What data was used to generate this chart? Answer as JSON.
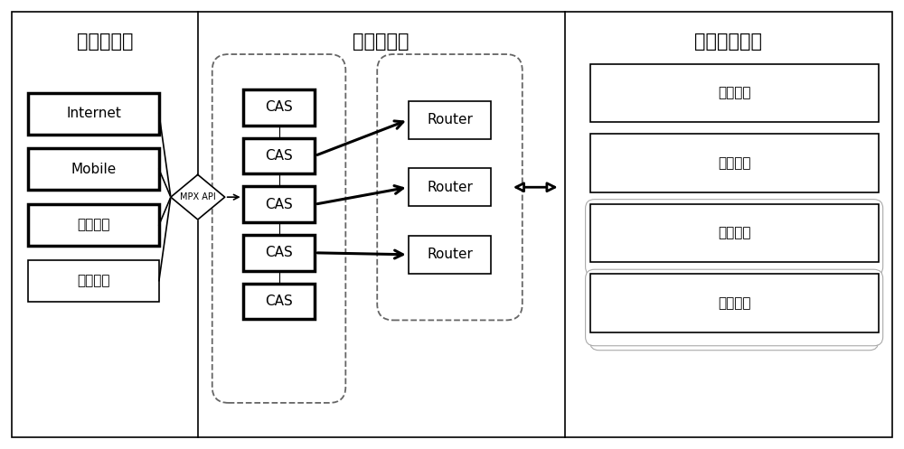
{
  "fig_width": 10.0,
  "fig_height": 4.97,
  "bg_color": "#ffffff",
  "section1_title": "新投注渠道",
  "section2_title": "接入路由层",
  "section3_title": "游戏交易系统",
  "left_boxes": [
    "Internet",
    "Mobile",
    "数字电视",
    "呼叫中心"
  ],
  "cas_labels": [
    "CAS",
    "CAS",
    "CAS",
    "CAS",
    "CAS"
  ],
  "router_labels": [
    "Router",
    "Router",
    "Router"
  ],
  "right_boxes": [
    "乐透系统",
    "高频系统",
    "竞彩系统",
    "即开系统"
  ],
  "mpx_label": "MPX API",
  "font_size_title": 15,
  "font_size_box": 11,
  "font_size_mpx": 7
}
